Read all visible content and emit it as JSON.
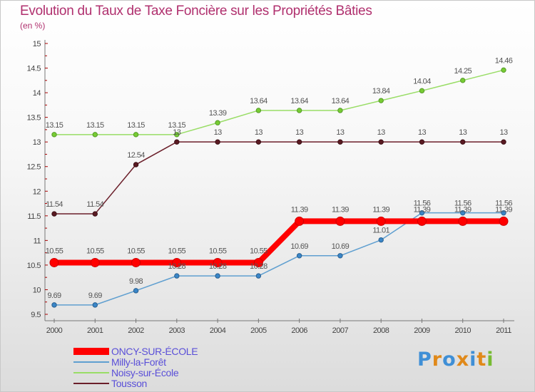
{
  "chart_data": {
    "type": "line",
    "title": "Evolution du Taux de Taxe Foncière sur les Propriétés Bâties",
    "subtitle": "(en %)",
    "x": [
      "2000",
      "2001",
      "2002",
      "2003",
      "2004",
      "2005",
      "2006",
      "2007",
      "2008",
      "2009",
      "2010",
      "2011"
    ],
    "ylim": [
      9.5,
      15
    ],
    "yticks": [
      "9.5",
      "10",
      "10.5",
      "11",
      "11.5",
      "12",
      "12.5",
      "13",
      "13.5",
      "14",
      "14.5",
      "15"
    ],
    "grid": false,
    "series": [
      {
        "name": "ONCY-SUR-ÉCOLE",
        "color": "#ff0000",
        "values": [
          10.55,
          10.55,
          10.55,
          10.55,
          10.55,
          10.55,
          11.39,
          11.39,
          11.39,
          11.39,
          11.39,
          11.39
        ],
        "labels": [
          "10.55",
          "10.55",
          "10.55",
          "10.55",
          "10.55",
          "10.55",
          "11.39",
          "11.39",
          "11.39",
          "11.39",
          "11.39",
          "11.39"
        ]
      },
      {
        "name": "Milly-la-Forêt",
        "color": "#5f9fd0",
        "values": [
          9.69,
          9.69,
          9.98,
          10.28,
          10.28,
          10.28,
          10.69,
          10.69,
          11.01,
          11.56,
          11.56,
          11.56
        ],
        "labels": [
          "9.69",
          "9.69",
          "9.98",
          "10.28",
          "10.28",
          "10.28",
          "10.69",
          "10.69",
          "11.01",
          "11.56",
          "11.56",
          "11.56"
        ]
      },
      {
        "name": "Noisy-sur-École",
        "color": "#99dd66",
        "values": [
          13.15,
          13.15,
          13.15,
          13.15,
          13.39,
          13.64,
          13.64,
          13.64,
          13.84,
          14.04,
          14.25,
          14.46
        ],
        "labels": [
          "13.15",
          "13.15",
          "13.15",
          "13.15",
          "13.39",
          "13.64",
          "13.64",
          "13.64",
          "13.84",
          "14.04",
          "14.25",
          "14.46"
        ]
      },
      {
        "name": "Tousson",
        "color": "#6b1f2a",
        "values": [
          11.54,
          11.54,
          12.54,
          13,
          13,
          13,
          13,
          13,
          13,
          13,
          13,
          13
        ],
        "labels": [
          "11.54",
          "11.54",
          "12.54",
          "13",
          "13",
          "13",
          "13",
          "13",
          "13",
          "13",
          "13",
          "13"
        ]
      }
    ]
  },
  "legend": {
    "items": [
      {
        "label": "ONCY-SUR-ÉCOLE",
        "color": "#ff0000"
      },
      {
        "label": "Milly-la-Forêt",
        "color": "#5f9fd0"
      },
      {
        "label": "Noisy-sur-École",
        "color": "#99dd66"
      },
      {
        "label": "Tousson",
        "color": "#6b1f2a"
      }
    ]
  },
  "logo": {
    "text": "Proxiti"
  }
}
